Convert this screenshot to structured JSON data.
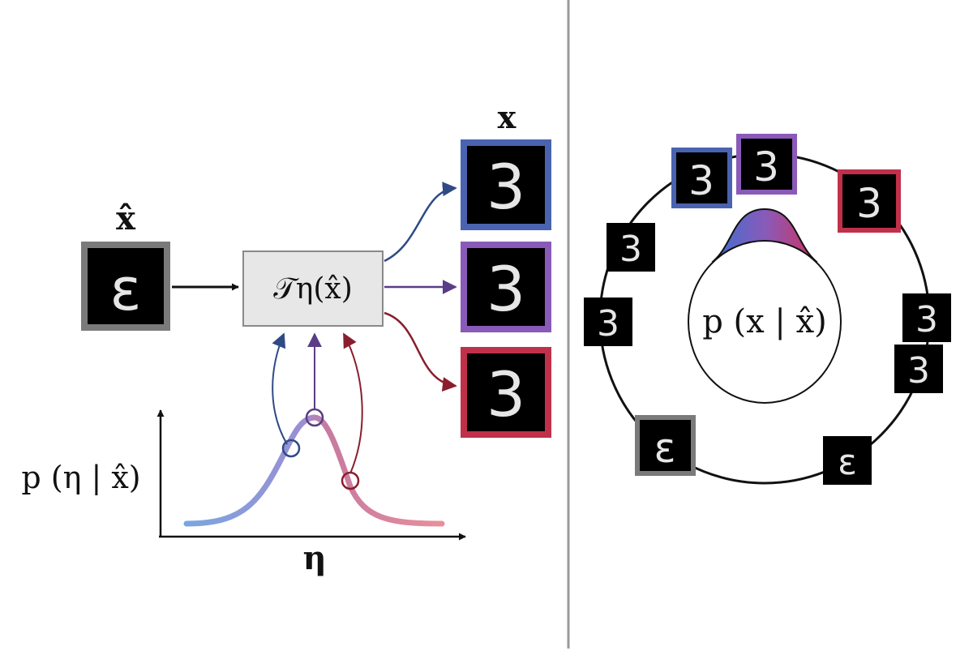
{
  "labels": {
    "x_hat": "x̂",
    "x": "x",
    "transform": "𝒯η(x̂)",
    "p_eta": "p (η | x̂)",
    "eta": "η",
    "p_x": "p (x | x̂)"
  },
  "colors": {
    "blue": "#4a63b0",
    "purple": "#8a5ab8",
    "red": "#c0304a",
    "gray": "#7a7a7a",
    "dark_blue": "#2f4a86",
    "dark_purple": "#5a3d87",
    "dark_red": "#8a1e2e",
    "box_fill": "#e7e7e7"
  },
  "digits": {
    "input": "ɛ",
    "outputs": [
      "3",
      "3",
      "3"
    ],
    "ring": [
      "3",
      "3",
      "3",
      "3",
      "3",
      "ɛ",
      "ɛ",
      "3",
      "3"
    ]
  },
  "icons": {
    "arrow": "arrow-icon",
    "digit_tile": "digit-image"
  }
}
